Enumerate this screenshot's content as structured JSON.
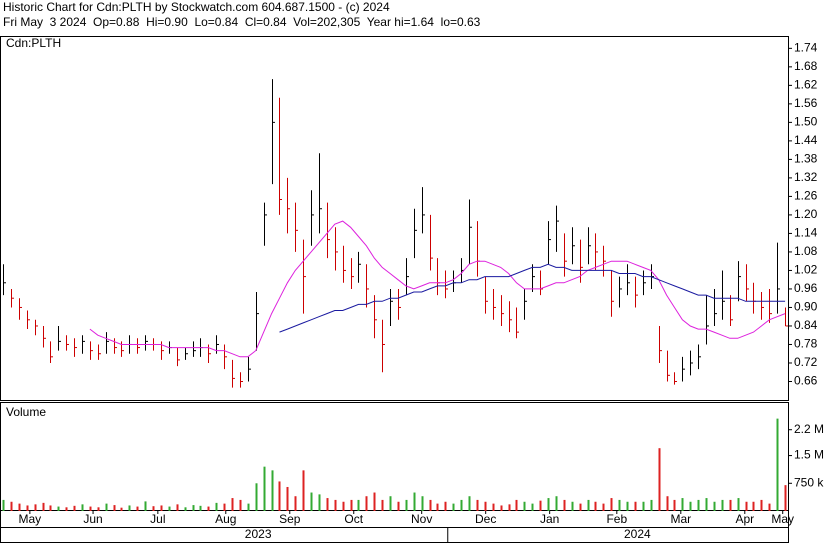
{
  "chart_data": {
    "type": "stock",
    "title": "Historic Chart for Cdn:PLTH by Stockwatch.com 604.687.1500 - (c) 2024",
    "subtitle": "Fri May  3 2024  Op=0.88  Hi=0.90  Lo=0.84  Cl=0.84  Vol=202,305  Year hi=1.64  lo=0.63",
    "panel_label": "Cdn:PLTH",
    "xlim": [
      -0.38,
      99.37
    ],
    "xticks": [
      {
        "value": 3.4,
        "label": "May"
      },
      {
        "value": 11.4,
        "label": "Jun"
      },
      {
        "value": 19.6,
        "label": "Jul"
      },
      {
        "value": 28.2,
        "label": "Aug"
      },
      {
        "value": 36.3,
        "label": "Sep"
      },
      {
        "value": 44.4,
        "label": "Oct"
      },
      {
        "value": 53,
        "label": "Nov"
      },
      {
        "value": 61.1,
        "label": "Dec"
      },
      {
        "value": 69.2,
        "label": "Jan"
      },
      {
        "value": 77.7,
        "label": "Feb"
      },
      {
        "value": 85.8,
        "label": "Mar"
      },
      {
        "value": 93.9,
        "label": "Apr"
      },
      {
        "value": 98.7,
        "label": "May"
      }
    ],
    "year_ticks": [
      {
        "value": 32.3,
        "label": "2023"
      },
      {
        "value": 80.3,
        "label": "2024"
      }
    ],
    "ylim": [
      0.6,
      1.78
    ],
    "yticks": [
      0.66,
      0.72,
      0.78,
      0.84,
      {
        "value": 0.9,
        "label": "0.90"
      },
      0.96,
      1.02,
      1.08,
      1.14,
      {
        "value": 1.2,
        "label": "1.20"
      },
      1.26,
      1.32,
      1.38,
      1.44,
      {
        "value": 1.5,
        "label": "1.50"
      },
      1.56,
      1.62,
      1.68,
      1.74
    ],
    "up_color": "#000000",
    "down_color": "#cc0000",
    "high": [
      1.04,
      0.96,
      0.93,
      0.89,
      0.86,
      0.84,
      0.79,
      0.84,
      0.81,
      0.8,
      0.81,
      0.79,
      0.78,
      0.82,
      0.8,
      0.79,
      0.81,
      0.8,
      0.81,
      0.8,
      0.79,
      0.79,
      0.77,
      0.77,
      0.79,
      0.8,
      0.78,
      0.81,
      0.78,
      0.73,
      0.69,
      0.74,
      0.95,
      1.24,
      1.64,
      1.58,
      1.32,
      1.24,
      1.12,
      1.28,
      1.4,
      1.24,
      1.16,
      1.1,
      1.06,
      1.08,
      1.04,
      0.94,
      0.86,
      0.96,
      0.96,
      1.06,
      1.22,
      1.29,
      1.2,
      1.06,
      1.02,
      1.02,
      1.06,
      1.25,
      1.18,
      1.0,
      0.96,
      0.94,
      0.92,
      0.9,
      0.96,
      1.04,
      1.02,
      1.18,
      1.23,
      1.14,
      1.16,
      1.12,
      1.16,
      1.14,
      1.1,
      1.02,
      1.0,
      1.04,
      1.0,
      1.02,
      1.04,
      0.84,
      0.76,
      0.69,
      0.74,
      0.76,
      0.78,
      0.94,
      0.96,
      1.02,
      0.94,
      1.05,
      1.04,
      0.98,
      0.95,
      0.96,
      1.11,
      0.9
    ],
    "low": [
      0.94,
      0.9,
      0.86,
      0.83,
      0.81,
      0.77,
      0.72,
      0.76,
      0.76,
      0.74,
      0.75,
      0.73,
      0.73,
      0.75,
      0.75,
      0.74,
      0.75,
      0.75,
      0.76,
      0.76,
      0.73,
      0.75,
      0.71,
      0.73,
      0.74,
      0.74,
      0.72,
      0.75,
      0.7,
      0.64,
      0.64,
      0.66,
      0.76,
      1.1,
      1.3,
      1.2,
      1.14,
      1.08,
      0.88,
      1.1,
      1.14,
      1.06,
      1.02,
      0.98,
      0.96,
      0.98,
      0.9,
      0.8,
      0.69,
      0.84,
      0.86,
      0.94,
      1.06,
      1.14,
      1.02,
      0.94,
      0.93,
      0.95,
      0.98,
      1.04,
      1.0,
      0.88,
      0.86,
      0.84,
      0.82,
      0.8,
      0.86,
      0.95,
      0.94,
      1.04,
      1.08,
      1.0,
      1.04,
      0.98,
      1.04,
      1.02,
      1.0,
      0.87,
      0.9,
      0.94,
      0.9,
      0.94,
      0.96,
      0.72,
      0.66,
      0.65,
      0.66,
      0.68,
      0.7,
      0.78,
      0.84,
      0.86,
      0.84,
      0.92,
      0.92,
      0.88,
      0.86,
      0.85,
      0.88,
      0.84
    ],
    "close": [
      0.98,
      0.93,
      0.9,
      0.86,
      0.84,
      0.8,
      0.74,
      0.79,
      0.78,
      0.77,
      0.79,
      0.76,
      0.75,
      0.79,
      0.77,
      0.76,
      0.78,
      0.77,
      0.79,
      0.78,
      0.76,
      0.77,
      0.73,
      0.75,
      0.76,
      0.77,
      0.75,
      0.78,
      0.74,
      0.67,
      0.66,
      0.7,
      0.88,
      1.2,
      1.5,
      1.25,
      1.22,
      1.15,
      1.0,
      1.2,
      1.22,
      1.12,
      1.08,
      1.02,
      1.0,
      1.04,
      0.96,
      0.86,
      0.78,
      0.92,
      0.9,
      1.0,
      1.15,
      1.2,
      1.06,
      0.98,
      0.96,
      0.98,
      1.02,
      1.16,
      1.05,
      0.92,
      0.9,
      0.88,
      0.86,
      0.82,
      0.92,
      1.0,
      0.96,
      1.12,
      1.18,
      1.05,
      1.1,
      1.03,
      1.1,
      1.08,
      1.05,
      0.92,
      0.96,
      0.98,
      0.94,
      0.98,
      1.0,
      0.76,
      0.68,
      0.66,
      0.7,
      0.72,
      0.74,
      0.84,
      0.88,
      0.92,
      0.86,
      1.0,
      0.96,
      0.92,
      0.9,
      0.88,
      0.96,
      0.84
    ],
    "lines": [
      {
        "color": "#dd22dd",
        "values": [
          null,
          null,
          null,
          null,
          null,
          null,
          null,
          null,
          null,
          null,
          null,
          0.83,
          0.81,
          0.8,
          0.79,
          0.78,
          0.78,
          0.78,
          0.78,
          0.78,
          0.78,
          0.77,
          0.77,
          0.77,
          0.77,
          0.77,
          0.77,
          0.76,
          0.76,
          0.75,
          0.74,
          0.74,
          0.76,
          0.82,
          0.88,
          0.93,
          0.98,
          1.02,
          1.05,
          1.08,
          1.11,
          1.14,
          1.17,
          1.18,
          1.16,
          1.13,
          1.1,
          1.06,
          1.03,
          1.01,
          0.99,
          0.97,
          0.96,
          0.97,
          0.98,
          0.98,
          0.98,
          0.99,
          1.01,
          1.04,
          1.05,
          1.05,
          1.04,
          1.03,
          1.01,
          0.98,
          0.96,
          0.96,
          0.96,
          0.97,
          0.98,
          0.98,
          0.99,
          1.0,
          1.02,
          1.03,
          1.04,
          1.05,
          1.05,
          1.05,
          1.04,
          1.03,
          1.02,
          0.99,
          0.94,
          0.9,
          0.86,
          0.84,
          0.83,
          0.83,
          0.82,
          0.81,
          0.8,
          0.8,
          0.81,
          0.82,
          0.84,
          0.86,
          0.87,
          0.88
        ]
      },
      {
        "color": "#1a1aa0",
        "values": [
          null,
          null,
          null,
          null,
          null,
          null,
          null,
          null,
          null,
          null,
          null,
          null,
          null,
          null,
          null,
          null,
          null,
          null,
          null,
          null,
          null,
          null,
          null,
          null,
          null,
          null,
          null,
          null,
          null,
          null,
          null,
          null,
          null,
          null,
          null,
          0.82,
          0.83,
          0.84,
          0.85,
          0.86,
          0.87,
          0.88,
          0.89,
          0.89,
          0.9,
          0.91,
          0.91,
          0.92,
          0.92,
          0.93,
          0.93,
          0.94,
          0.95,
          0.95,
          0.96,
          0.97,
          0.97,
          0.98,
          0.98,
          0.99,
          0.99,
          1.0,
          1.0,
          1.0,
          1.0,
          1.01,
          1.02,
          1.03,
          1.03,
          1.04,
          1.03,
          1.03,
          1.02,
          1.02,
          1.02,
          1.02,
          1.02,
          1.02,
          1.01,
          1.01,
          1.01,
          1.0,
          1.0,
          0.99,
          0.98,
          0.97,
          0.96,
          0.95,
          0.94,
          0.94,
          0.93,
          0.93,
          0.93,
          0.93,
          0.92,
          0.92,
          0.92,
          0.92,
          0.92,
          0.92
        ]
      }
    ],
    "volume": {
      "label": "Volume",
      "ylim": [
        0,
        2950000
      ],
      "yticks": [
        {
          "value": 750000,
          "label": "750 k"
        },
        {
          "value": 1500000,
          "label": "1.5 M"
        },
        {
          "value": 2200000,
          "label": "2.2 M"
        }
      ],
      "up_color": "#33aa33",
      "down_color": "#dd2222",
      "values": [
        300000,
        250000,
        200000,
        150000,
        180000,
        220000,
        150000,
        120000,
        100000,
        140000,
        180000,
        120000,
        100000,
        200000,
        160000,
        90000,
        150000,
        120000,
        260000,
        130000,
        150000,
        120000,
        180000,
        100000,
        160000,
        140000,
        120000,
        220000,
        200000,
        350000,
        300000,
        200000,
        750000,
        1200000,
        1100000,
        800000,
        650000,
        400000,
        1100000,
        500000,
        450000,
        350000,
        300000,
        250000,
        300000,
        300000,
        400000,
        500000,
        300000,
        400000,
        250000,
        300000,
        500000,
        400000,
        300000,
        200000,
        250000,
        200000,
        300000,
        400000,
        300000,
        250000,
        200000,
        150000,
        180000,
        300000,
        250000,
        200000,
        280000,
        350000,
        400000,
        300000,
        250000,
        200000,
        300000,
        250000,
        200000,
        350000,
        300000,
        250000,
        250000,
        250000,
        300000,
        1700000,
        400000,
        300000,
        350000,
        250000,
        300000,
        350000,
        250000,
        300000,
        300000,
        350000,
        250000,
        250000,
        300000,
        200000,
        2500000,
        700000
      ]
    }
  }
}
